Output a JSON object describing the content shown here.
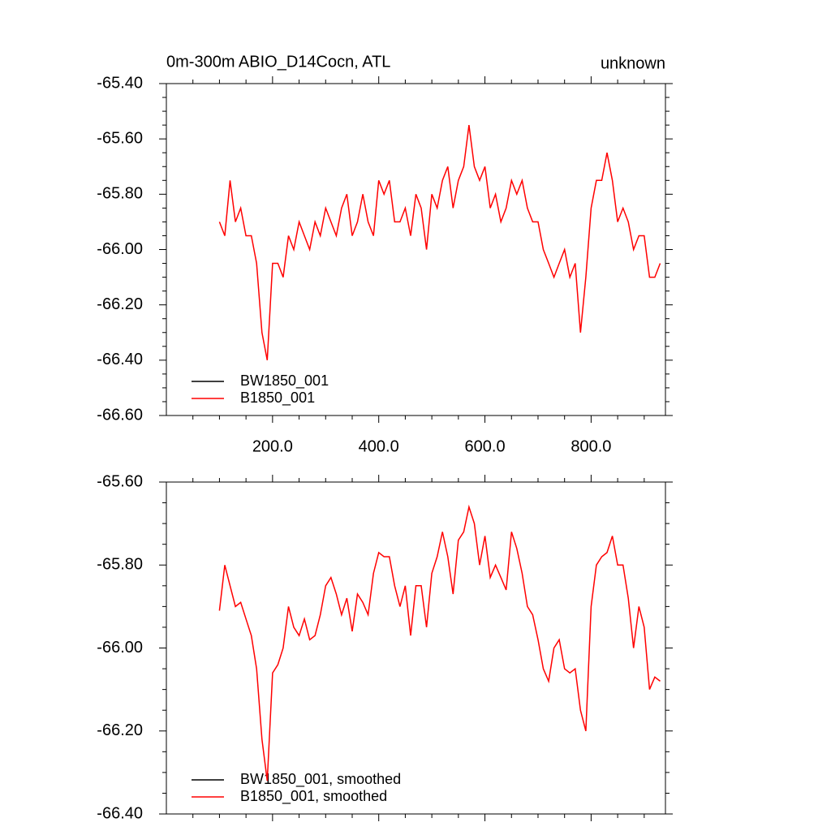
{
  "chart_data": [
    {
      "type": "line",
      "title": "0m-300m ABIO_D14Cocn, ATL",
      "subtitle": "unknown",
      "x": [
        100,
        110,
        120,
        130,
        140,
        150,
        160,
        170,
        180,
        190,
        200,
        210,
        220,
        230,
        240,
        250,
        260,
        270,
        280,
        290,
        300,
        310,
        320,
        330,
        340,
        350,
        360,
        370,
        380,
        390,
        400,
        410,
        420,
        430,
        440,
        450,
        460,
        470,
        480,
        490,
        500,
        510,
        520,
        530,
        540,
        550,
        560,
        570,
        580,
        590,
        600,
        610,
        620,
        630,
        640,
        650,
        660,
        670,
        680,
        690,
        700,
        710,
        720,
        730,
        740,
        750,
        760,
        770,
        780,
        790,
        800,
        810,
        820,
        830,
        840,
        850,
        860,
        870,
        880,
        890,
        900,
        910,
        920,
        930
      ],
      "series": [
        {
          "name": "BW1850_001",
          "color": "#000000",
          "values": [
            null,
            null,
            null,
            null,
            null,
            null,
            null,
            null,
            null,
            null,
            null,
            null,
            null,
            null,
            null,
            null,
            null,
            null,
            null,
            null,
            null,
            null,
            null,
            null,
            null,
            null,
            null,
            null,
            null,
            null,
            null,
            null,
            null,
            null,
            null,
            null,
            null,
            null,
            null,
            null,
            null,
            null,
            null,
            null,
            null,
            null,
            null,
            null,
            null,
            null,
            null,
            null,
            null,
            null,
            null,
            null,
            null,
            null,
            null,
            null,
            null,
            null,
            null,
            null,
            null,
            null,
            null,
            null,
            null,
            null,
            null,
            null,
            null,
            null,
            null,
            null,
            null,
            null,
            null,
            null,
            null,
            null,
            null,
            null
          ]
        },
        {
          "name": "B1850_001",
          "color": "#ff0000",
          "values": [
            -65.9,
            -65.95,
            -65.75,
            -65.9,
            -65.85,
            -65.95,
            -65.95,
            -66.05,
            -66.3,
            -66.4,
            -66.05,
            -66.05,
            -66.1,
            -65.95,
            -66.0,
            -65.9,
            -65.95,
            -66.0,
            -65.9,
            -65.95,
            -65.85,
            -65.9,
            -65.95,
            -65.85,
            -65.8,
            -65.95,
            -65.9,
            -65.8,
            -65.9,
            -65.95,
            -65.75,
            -65.8,
            -65.75,
            -65.9,
            -65.9,
            -65.85,
            -65.95,
            -65.8,
            -65.85,
            -66.0,
            -65.8,
            -65.85,
            -65.75,
            -65.7,
            -65.85,
            -65.75,
            -65.7,
            -65.55,
            -65.7,
            -65.75,
            -65.7,
            -65.85,
            -65.8,
            -65.9,
            -65.85,
            -65.75,
            -65.8,
            -65.75,
            -65.85,
            -65.9,
            -65.9,
            -66.0,
            -66.05,
            -66.1,
            -66.05,
            -66.0,
            -66.1,
            -66.05,
            -66.3,
            -66.1,
            -65.85,
            -65.75,
            -65.75,
            -65.65,
            -65.75,
            -65.9,
            -65.85,
            -65.9,
            -66.0,
            -65.95,
            -65.95,
            -66.1,
            -66.1,
            -66.05
          ]
        }
      ],
      "xlim": [
        0,
        940
      ],
      "xticks": [
        {
          "value": 200,
          "label": "200.0"
        },
        {
          "value": 400,
          "label": "400.0"
        },
        {
          "value": 600,
          "label": "600.0"
        },
        {
          "value": 800,
          "label": "800.0"
        }
      ],
      "ylim": [
        -66.6,
        -65.4
      ],
      "yticks": [
        {
          "value": -65.4,
          "label": "-65.40"
        },
        {
          "value": -65.6,
          "label": "-65.60"
        },
        {
          "value": -65.8,
          "label": "-65.80"
        },
        {
          "value": -66.0,
          "label": "-66.00"
        },
        {
          "value": -66.2,
          "label": "-66.20"
        },
        {
          "value": -66.4,
          "label": "-66.40"
        },
        {
          "value": -66.6,
          "label": "-66.60"
        }
      ],
      "legend": "lower left"
    },
    {
      "type": "line",
      "x": [
        100,
        110,
        120,
        130,
        140,
        150,
        160,
        170,
        180,
        190,
        200,
        210,
        220,
        230,
        240,
        250,
        260,
        270,
        280,
        290,
        300,
        310,
        320,
        330,
        340,
        350,
        360,
        370,
        380,
        390,
        400,
        410,
        420,
        430,
        440,
        450,
        460,
        470,
        480,
        490,
        500,
        510,
        520,
        530,
        540,
        550,
        560,
        570,
        580,
        590,
        600,
        610,
        620,
        630,
        640,
        650,
        660,
        670,
        680,
        690,
        700,
        710,
        720,
        730,
        740,
        750,
        760,
        770,
        780,
        790,
        800,
        810,
        820,
        830,
        840,
        850,
        860,
        870,
        880,
        890,
        900,
        910,
        920,
        930
      ],
      "series": [
        {
          "name": "BW1850_001, smoothed",
          "color": "#000000",
          "values": [
            null,
            null,
            null,
            null,
            null,
            null,
            null,
            null,
            null,
            null,
            null,
            null,
            null,
            null,
            null,
            null,
            null,
            null,
            null,
            null,
            null,
            null,
            null,
            null,
            null,
            null,
            null,
            null,
            null,
            null,
            null,
            null,
            null,
            null,
            null,
            null,
            null,
            null,
            null,
            null,
            null,
            null,
            null,
            null,
            null,
            null,
            null,
            null,
            null,
            null,
            null,
            null,
            null,
            null,
            null,
            null,
            null,
            null,
            null,
            null,
            null,
            null,
            null,
            null,
            null,
            null,
            null,
            null,
            null,
            null,
            null,
            null,
            null,
            null,
            null,
            null,
            null,
            null,
            null,
            null,
            null,
            null,
            null,
            null
          ]
        },
        {
          "name": "B1850_001, smoothed",
          "color": "#ff0000",
          "values": [
            -65.91,
            -65.8,
            -65.85,
            -65.9,
            -65.89,
            -65.93,
            -65.97,
            -66.05,
            -66.22,
            -66.32,
            -66.06,
            -66.04,
            -66.0,
            -65.9,
            -65.95,
            -65.97,
            -65.93,
            -65.98,
            -65.97,
            -65.92,
            -65.85,
            -65.83,
            -65.87,
            -65.92,
            -65.88,
            -65.96,
            -65.87,
            -65.89,
            -65.92,
            -65.82,
            -65.77,
            -65.78,
            -65.78,
            -65.85,
            -65.9,
            -65.85,
            -65.97,
            -65.85,
            -65.85,
            -65.95,
            -65.82,
            -65.78,
            -65.72,
            -65.78,
            -65.87,
            -65.74,
            -65.72,
            -65.66,
            -65.7,
            -65.8,
            -65.73,
            -65.83,
            -65.8,
            -65.83,
            -65.86,
            -65.72,
            -65.76,
            -65.82,
            -65.9,
            -65.92,
            -65.98,
            -66.05,
            -66.08,
            -66.0,
            -65.98,
            -66.05,
            -66.06,
            -66.05,
            -66.15,
            -66.2,
            -65.9,
            -65.8,
            -65.78,
            -65.77,
            -65.73,
            -65.8,
            -65.8,
            -65.88,
            -66.0,
            -65.9,
            -65.95,
            -66.1,
            -66.07,
            -66.08
          ]
        }
      ],
      "xlim": [
        0,
        940
      ],
      "xticks": [
        200,
        400,
        600,
        800
      ],
      "ylim": [
        -66.4,
        -65.6
      ],
      "yticks": [
        {
          "value": -65.6,
          "label": "-65.60"
        },
        {
          "value": -65.8,
          "label": "-65.80"
        },
        {
          "value": -66.0,
          "label": "-66.00"
        },
        {
          "value": -66.2,
          "label": "-66.20"
        },
        {
          "value": -66.4,
          "label": "-66.40"
        }
      ],
      "legend": "lower left"
    }
  ]
}
